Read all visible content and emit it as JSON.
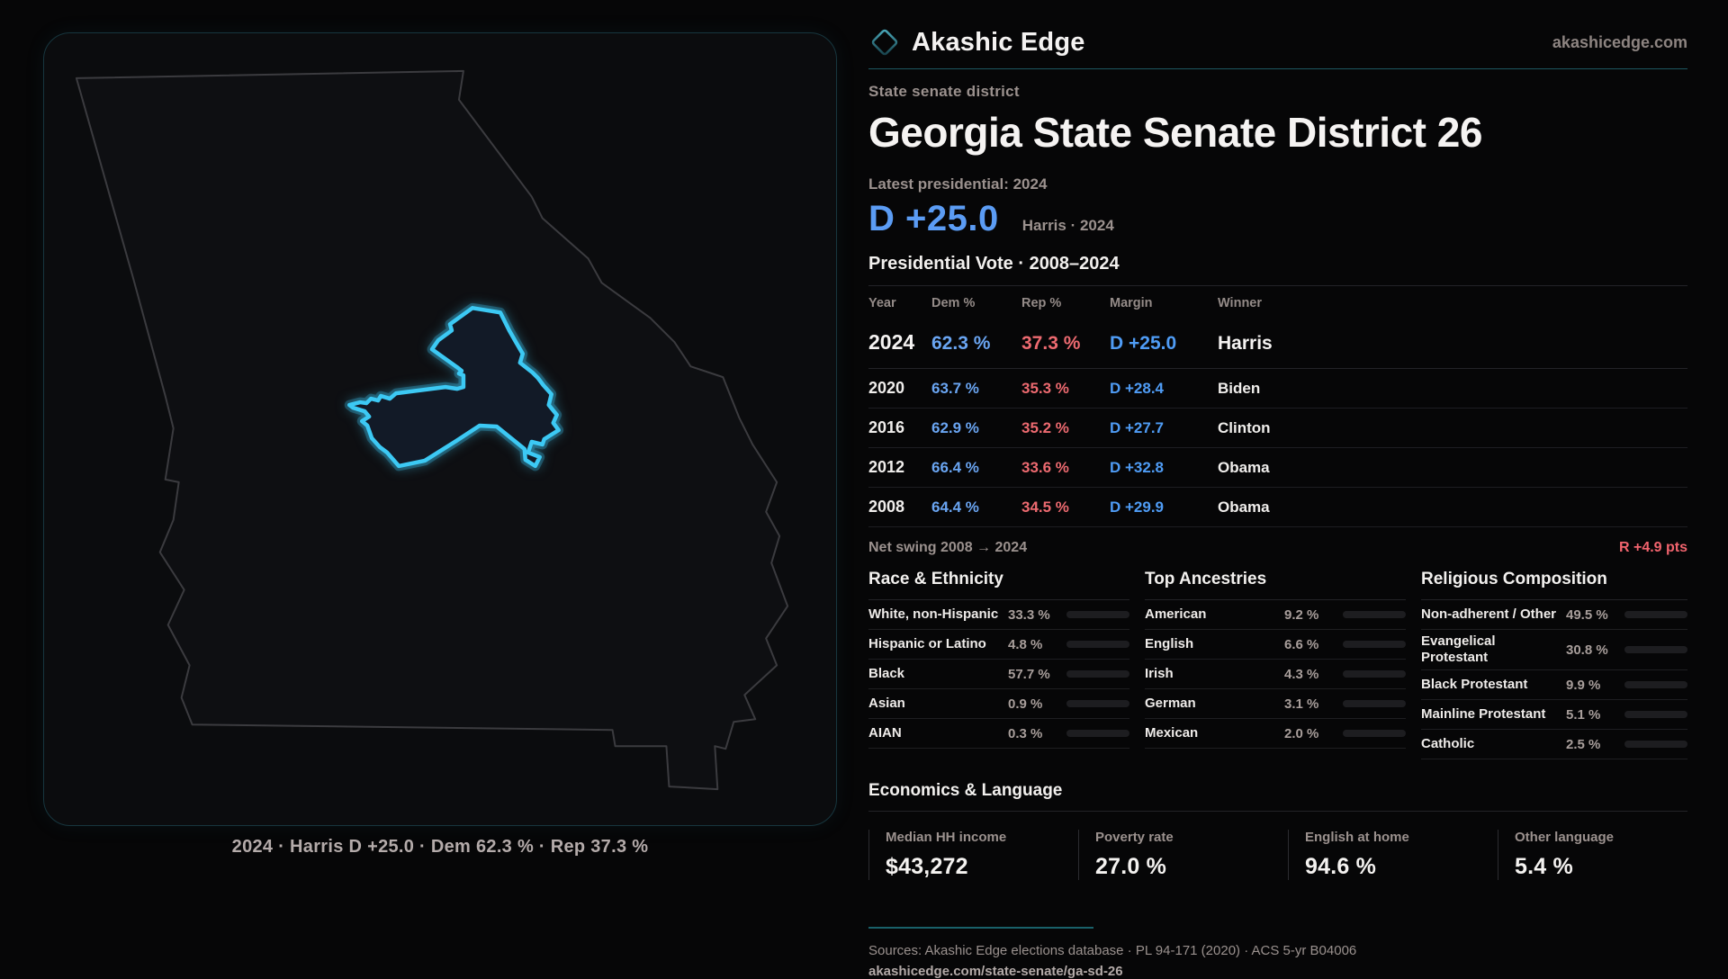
{
  "brand": {
    "name": "Akashic Edge",
    "domain": "akashicedge.com",
    "accent_teal": "#2d6e7a"
  },
  "page": {
    "kicker": "State senate district",
    "title": "Georgia State Senate District 26",
    "latest_label": "Latest presidential: 2024",
    "headline_margin": "D +25.0",
    "headline_context": "Harris · 2024",
    "accent_blue": "#5b9cf4",
    "accent_red": "#ed6a70",
    "district_highlight": "#3cc9f4"
  },
  "map": {
    "caption": "2024 · Harris D +25.0 · Dem 62.3 % · Rep 37.3 %"
  },
  "vote_table": {
    "title": "Presidential Vote · 2008–2024",
    "headers": {
      "year": "Year",
      "dem": "Dem %",
      "rep": "Rep %",
      "margin": "Margin",
      "winner": "Winner"
    },
    "rows": [
      {
        "year": "2024",
        "dem": "62.3 %",
        "rep": "37.3 %",
        "margin": "D +25.0",
        "winner": "Harris"
      },
      {
        "year": "2020",
        "dem": "63.7 %",
        "rep": "35.3 %",
        "margin": "D +28.4",
        "winner": "Biden"
      },
      {
        "year": "2016",
        "dem": "62.9 %",
        "rep": "35.2 %",
        "margin": "D +27.7",
        "winner": "Clinton"
      },
      {
        "year": "2012",
        "dem": "66.4 %",
        "rep": "33.6 %",
        "margin": "D +32.8",
        "winner": "Obama"
      },
      {
        "year": "2008",
        "dem": "64.4 %",
        "rep": "34.5 %",
        "margin": "D +29.9",
        "winner": "Obama"
      }
    ],
    "net_swing_label": "Net swing 2008 → 2024",
    "net_swing_value": "R +4.9 pts"
  },
  "chart_data": [
    {
      "type": "table",
      "title": "Presidential Vote · 2008–2024",
      "categories": [
        "2024",
        "2020",
        "2016",
        "2012",
        "2008"
      ],
      "series": [
        {
          "name": "Dem %",
          "values": [
            62.3,
            63.7,
            62.9,
            66.4,
            64.4
          ]
        },
        {
          "name": "Rep %",
          "values": [
            37.3,
            35.3,
            35.2,
            33.6,
            34.5
          ]
        },
        {
          "name": "Margin",
          "values": [
            "D +25.0",
            "D +28.4",
            "D +27.7",
            "D +32.8",
            "D +29.9"
          ]
        },
        {
          "name": "Winner",
          "values": [
            "Harris",
            "Biden",
            "Clinton",
            "Obama",
            "Obama"
          ]
        }
      ]
    },
    {
      "type": "bar",
      "title": "Race & Ethnicity",
      "categories": [
        "White, non-Hispanic",
        "Hispanic or Latino",
        "Black",
        "Asian",
        "AIAN"
      ],
      "values": [
        33.3,
        4.8,
        57.7,
        0.9,
        0.3
      ],
      "xlim": [
        0,
        100
      ]
    },
    {
      "type": "bar",
      "title": "Top Ancestries",
      "categories": [
        "American",
        "English",
        "Irish",
        "German",
        "Mexican"
      ],
      "values": [
        9.2,
        6.6,
        4.3,
        3.1,
        2.0
      ],
      "xlim": [
        0,
        100
      ]
    },
    {
      "type": "bar",
      "title": "Religious Composition",
      "categories": [
        "Non-adherent / Other",
        "Evangelical Protestant",
        "Black Protestant",
        "Mainline Protestant",
        "Catholic"
      ],
      "values": [
        49.5,
        30.8,
        9.9,
        5.1,
        2.5
      ],
      "xlim": [
        0,
        100
      ]
    }
  ],
  "race": {
    "title": "Race & Ethnicity",
    "rows": [
      {
        "label": "White, non-Hispanic",
        "value": "33.3 %",
        "pct": 33.3,
        "color": "#8ba3bd"
      },
      {
        "label": "Hispanic or Latino",
        "value": "4.8 %",
        "pct": 4.8,
        "color": "#e69b2f"
      },
      {
        "label": "Black",
        "value": "57.7 %",
        "pct": 57.7,
        "color": "#9b7fec"
      },
      {
        "label": "Asian",
        "value": "0.9 %",
        "pct": 0.9,
        "color": "#35c98f"
      },
      {
        "label": "AIAN",
        "value": "0.3 %",
        "pct": 0.3,
        "color": "#3a3a40"
      }
    ]
  },
  "ancestry": {
    "title": "Top Ancestries",
    "rows": [
      {
        "label": "American",
        "value": "9.2 %",
        "pct": 9.2,
        "color": "#86a7cd"
      },
      {
        "label": "English",
        "value": "6.6 %",
        "pct": 6.6,
        "color": "#86a7cd"
      },
      {
        "label": "Irish",
        "value": "4.3 %",
        "pct": 4.3,
        "color": "#9fc3e8"
      },
      {
        "label": "German",
        "value": "3.1 %",
        "pct": 3.1,
        "color": "#9fb6cf"
      },
      {
        "label": "Mexican",
        "value": "2.0 %",
        "pct": 2.0,
        "color": "#e69b2f"
      }
    ]
  },
  "religion": {
    "title": "Religious Composition",
    "rows": [
      {
        "label": "Non-adherent / Other",
        "value": "49.5 %",
        "pct": 49.5,
        "color": "#7e8da3"
      },
      {
        "label": "Evangelical Protestant",
        "value": "30.8 %",
        "pct": 30.8,
        "color": "#e0626d"
      },
      {
        "label": "Black Protestant",
        "value": "9.9 %",
        "pct": 9.9,
        "color": "#8f7bea"
      },
      {
        "label": "Mainline Protestant",
        "value": "5.1 %",
        "pct": 5.1,
        "color": "#4f8fe8"
      },
      {
        "label": "Catholic",
        "value": "2.5 %",
        "pct": 2.5,
        "color": "#d2a02e"
      }
    ]
  },
  "economics": {
    "title": "Economics & Language",
    "stats": [
      {
        "label": "Median HH income",
        "value": "$43,272"
      },
      {
        "label": "Poverty rate",
        "value": "27.0 %"
      },
      {
        "label": "English at home",
        "value": "94.6 %"
      },
      {
        "label": "Other language",
        "value": "5.4 %"
      }
    ]
  },
  "footer": {
    "sources": "Sources: Akashic Edge elections database · PL 94-171 (2020) · ACS 5-yr B04006",
    "permalink": "akashicedge.com/state-senate/ga-sd-26"
  }
}
